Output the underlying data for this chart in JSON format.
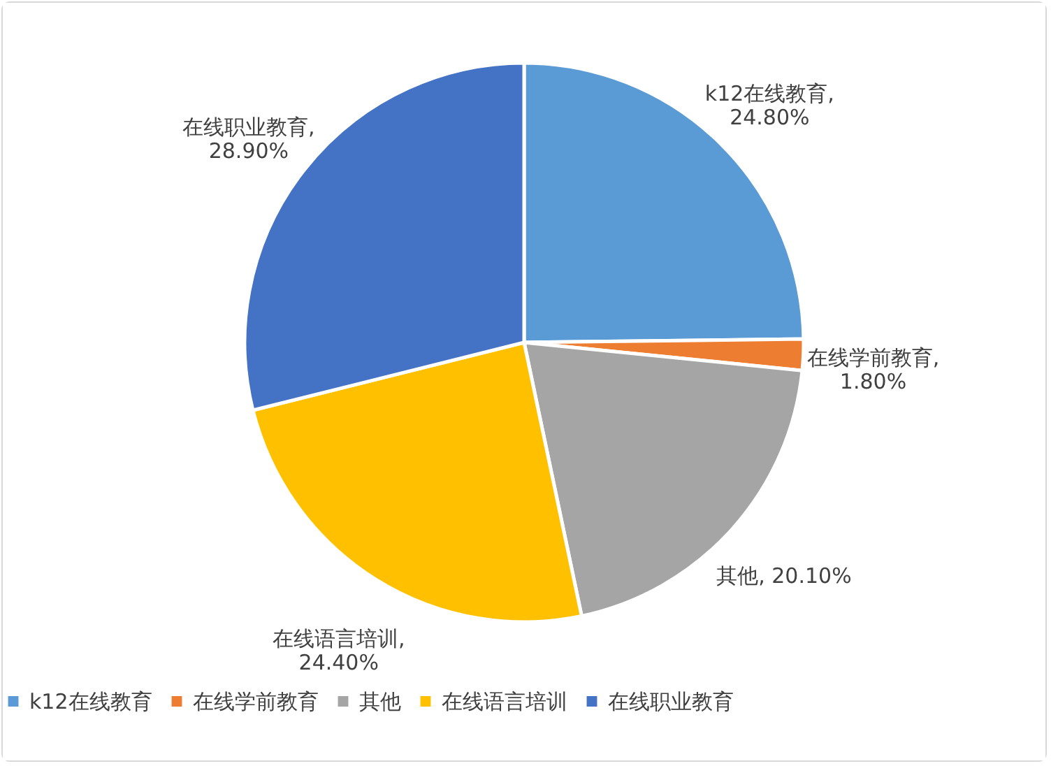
{
  "chart_data": {
    "type": "pie",
    "categories": [
      "k12在线教育",
      "在线学前教育",
      "其他",
      "在线语言培训",
      "在线职业教育"
    ],
    "values": [
      24.8,
      1.8,
      20.1,
      24.4,
      28.9
    ],
    "colors": [
      "#5b9bd5",
      "#ed7d31",
      "#a5a5a5",
      "#ffc000",
      "#4472c4"
    ],
    "annotations": [
      "k12在线教育, 24.80%",
      "在线学前教育, 1.80%",
      "其他, 20.10%",
      "在线语言培训, 24.40%",
      "在线职业教育, 28.90%"
    ],
    "legend": "bottom"
  }
}
